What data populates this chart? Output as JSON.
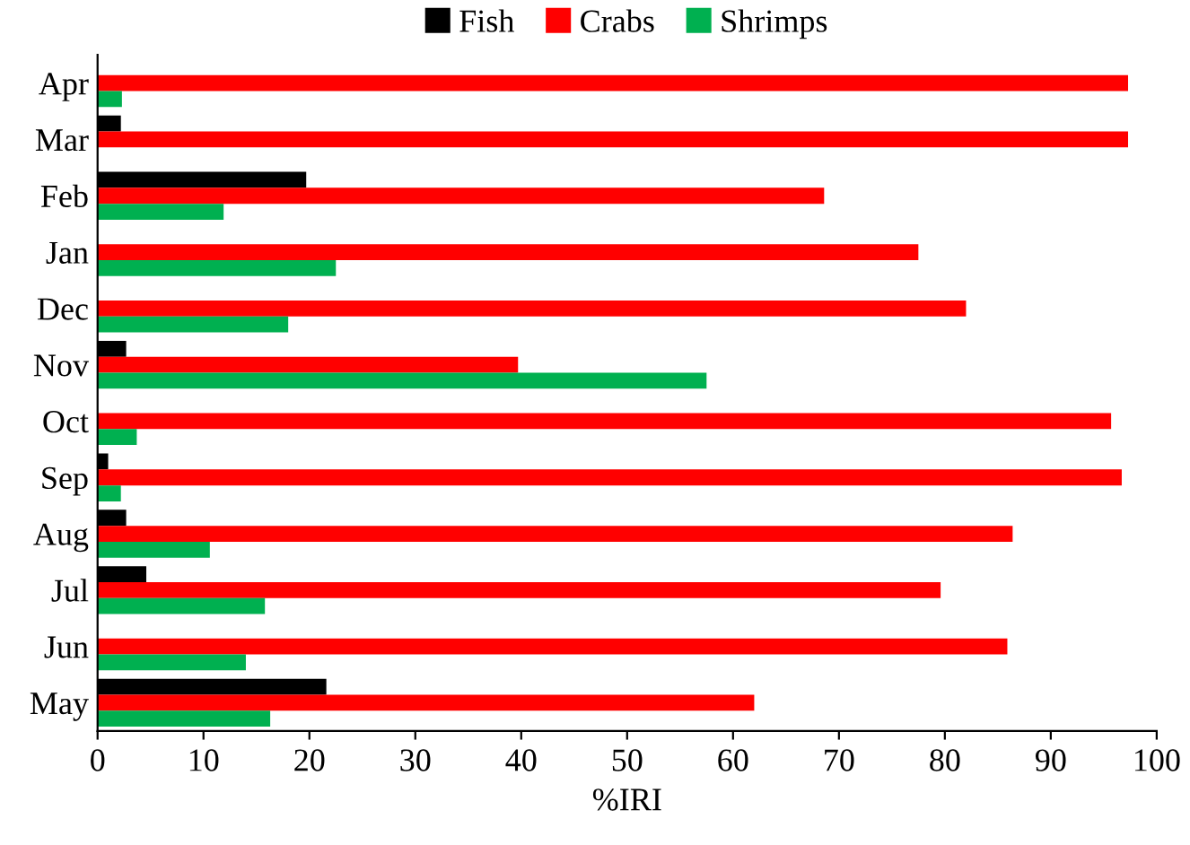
{
  "chart_data": {
    "type": "bar",
    "orientation": "horizontal",
    "xlabel": "%IRI",
    "categories": [
      "Apr",
      "Mar",
      "Feb",
      "Jan",
      "Dec",
      "Nov",
      "Oct",
      "Sep",
      "Aug",
      "Jul",
      "Jun",
      "May"
    ],
    "series": [
      {
        "name": "Fish",
        "color": "#000000",
        "values": [
          0,
          2.2,
          19.7,
          0,
          0,
          2.7,
          0,
          1.0,
          2.7,
          4.6,
          0,
          21.6
        ]
      },
      {
        "name": "Crabs",
        "color": "#ff0000",
        "values": [
          97.3,
          97.3,
          68.6,
          77.5,
          82,
          39.7,
          95.7,
          96.7,
          86.4,
          79.6,
          85.9,
          62
        ]
      },
      {
        "name": "Shrimps",
        "color": "#00b050",
        "values": [
          2.3,
          0,
          11.9,
          22.5,
          18,
          57.5,
          3.7,
          2.2,
          10.6,
          15.8,
          14.0,
          16.3
        ]
      }
    ],
    "xlim": [
      0,
      100
    ],
    "xticks": [
      0,
      10,
      20,
      30,
      40,
      50,
      60,
      70,
      80,
      90,
      100
    ],
    "grid": false,
    "legend": "top"
  }
}
